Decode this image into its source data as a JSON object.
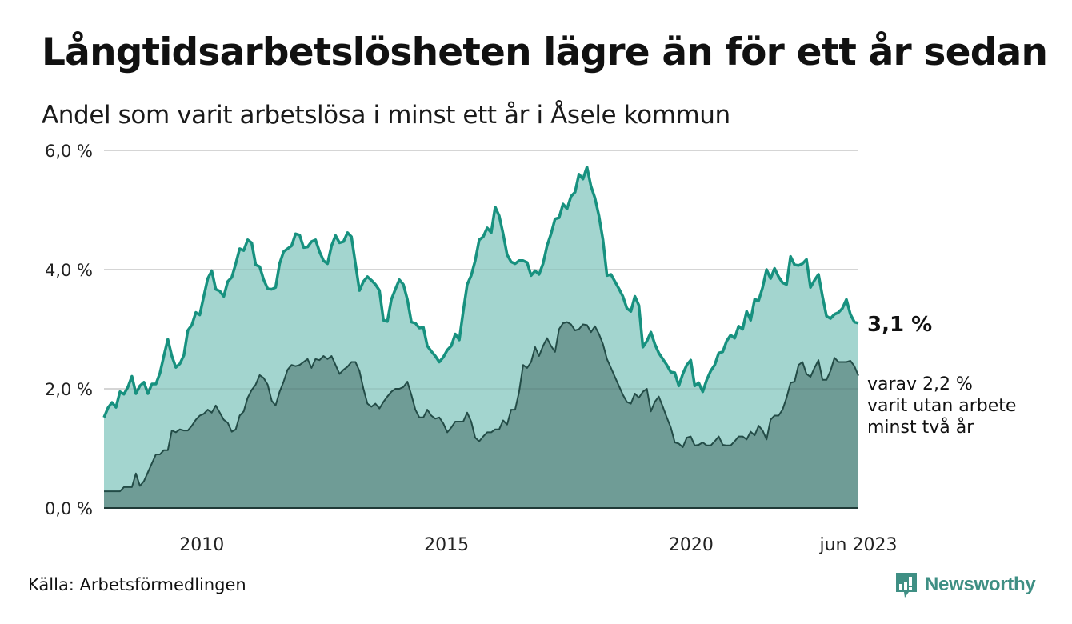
{
  "header": {
    "title": "Långtidsarbetslösheten lägre än för ett år sedan",
    "subtitle": "Andel som varit arbetslösa i minst ett år i Åsele kommun"
  },
  "footer": {
    "source": "Källa: Arbetsförmedlingen",
    "brand": "Newsworthy",
    "brand_icon": "speech-bubble-bar-chart-icon"
  },
  "colors": {
    "total_line": "#17917f",
    "total_fill": "#a3d5cf",
    "long_line": "#234c47",
    "long_fill": "#6f9c96",
    "grid": "#e3e3e3",
    "brand": "#3f8f84"
  },
  "chart_data": {
    "type": "area",
    "title": "Långtidsarbetslösheten lägre än för ett år sedan",
    "subtitle": "Andel som varit arbetslösa i minst ett år i Åsele kommun",
    "xlabel": "",
    "ylabel": "",
    "x_start": "2008-01",
    "x_end": "2023-06",
    "frequency": "monthly",
    "xlim": [
      2008.0,
      2023.42
    ],
    "ylim": [
      0,
      6
    ],
    "grid": true,
    "y_ticks": [
      {
        "value": 0,
        "label": "0,0 %"
      },
      {
        "value": 2,
        "label": "2,0 %"
      },
      {
        "value": 4,
        "label": "4,0 %"
      },
      {
        "value": 6,
        "label": "6,0 %"
      }
    ],
    "x_ticks": [
      {
        "value": 2010.0,
        "label": "2010"
      },
      {
        "value": 2015.0,
        "label": "2015"
      },
      {
        "value": 2020.0,
        "label": "2020"
      },
      {
        "value": 2023.42,
        "label": "jun 2023"
      }
    ],
    "series": [
      {
        "name": "Arbetslösa minst ett år",
        "end_label": "3,1 %",
        "values": [
          1.52,
          1.68,
          1.77,
          1.69,
          1.95,
          1.91,
          2.03,
          2.21,
          1.92,
          2.05,
          2.11,
          1.92,
          2.08,
          2.08,
          2.26,
          2.55,
          2.83,
          2.55,
          2.36,
          2.42,
          2.56,
          2.98,
          3.07,
          3.28,
          3.24,
          3.55,
          3.85,
          3.98,
          3.67,
          3.64,
          3.55,
          3.8,
          3.87,
          4.1,
          4.35,
          4.32,
          4.5,
          4.45,
          4.08,
          4.05,
          3.83,
          3.68,
          3.67,
          3.7,
          4.1,
          4.3,
          4.35,
          4.4,
          4.6,
          4.58,
          4.37,
          4.38,
          4.47,
          4.5,
          4.3,
          4.15,
          4.1,
          4.4,
          4.57,
          4.45,
          4.47,
          4.62,
          4.55,
          4.1,
          3.65,
          3.8,
          3.88,
          3.82,
          3.75,
          3.65,
          3.15,
          3.13,
          3.5,
          3.67,
          3.83,
          3.75,
          3.5,
          3.12,
          3.1,
          3.02,
          3.03,
          2.72,
          2.63,
          2.55,
          2.45,
          2.53,
          2.65,
          2.72,
          2.92,
          2.82,
          3.3,
          3.75,
          3.9,
          4.15,
          4.5,
          4.55,
          4.7,
          4.62,
          5.05,
          4.9,
          4.6,
          4.25,
          4.13,
          4.1,
          4.15,
          4.15,
          4.12,
          3.9,
          3.98,
          3.92,
          4.1,
          4.4,
          4.6,
          4.85,
          4.87,
          5.1,
          5.02,
          5.23,
          5.3,
          5.6,
          5.52,
          5.72,
          5.4,
          5.2,
          4.9,
          4.5,
          3.9,
          3.92,
          3.8,
          3.68,
          3.55,
          3.35,
          3.3,
          3.55,
          3.4,
          2.7,
          2.8,
          2.95,
          2.75,
          2.6,
          2.5,
          2.4,
          2.28,
          2.27,
          2.05,
          2.25,
          2.4,
          2.48,
          2.05,
          2.1,
          1.95,
          2.15,
          2.3,
          2.4,
          2.6,
          2.62,
          2.8,
          2.9,
          2.85,
          3.05,
          3.0,
          3.3,
          3.15,
          3.5,
          3.48,
          3.7,
          4.0,
          3.85,
          4.02,
          3.88,
          3.78,
          3.75,
          4.22,
          4.08,
          4.07,
          4.1,
          4.17,
          3.7,
          3.82,
          3.92,
          3.55,
          3.22,
          3.18,
          3.25,
          3.28,
          3.35,
          3.5,
          3.25,
          3.12,
          3.1
        ]
      },
      {
        "name": "varav utan arbete minst två år",
        "end_label": [
          "varav 2,2 %",
          "varit utan arbete",
          "minst två år"
        ],
        "values": [
          0.28,
          0.28,
          0.28,
          0.28,
          0.28,
          0.35,
          0.35,
          0.35,
          0.58,
          0.37,
          0.45,
          0.6,
          0.75,
          0.9,
          0.9,
          0.97,
          0.97,
          1.3,
          1.27,
          1.32,
          1.3,
          1.3,
          1.38,
          1.48,
          1.55,
          1.58,
          1.65,
          1.6,
          1.72,
          1.6,
          1.48,
          1.43,
          1.28,
          1.32,
          1.55,
          1.62,
          1.85,
          1.98,
          2.07,
          2.23,
          2.18,
          2.07,
          1.8,
          1.72,
          1.95,
          2.12,
          2.32,
          2.4,
          2.38,
          2.4,
          2.45,
          2.5,
          2.35,
          2.5,
          2.48,
          2.55,
          2.5,
          2.55,
          2.4,
          2.25,
          2.32,
          2.37,
          2.45,
          2.45,
          2.3,
          2.0,
          1.75,
          1.7,
          1.75,
          1.67,
          1.78,
          1.87,
          1.95,
          2.0,
          2.0,
          2.03,
          2.12,
          1.9,
          1.65,
          1.52,
          1.52,
          1.65,
          1.55,
          1.5,
          1.52,
          1.42,
          1.27,
          1.35,
          1.45,
          1.45,
          1.45,
          1.6,
          1.45,
          1.18,
          1.12,
          1.2,
          1.27,
          1.27,
          1.32,
          1.32,
          1.47,
          1.4,
          1.65,
          1.65,
          1.95,
          2.4,
          2.35,
          2.45,
          2.7,
          2.55,
          2.72,
          2.85,
          2.72,
          2.62,
          3.0,
          3.1,
          3.12,
          3.08,
          2.98,
          3.0,
          3.08,
          3.07,
          2.95,
          3.05,
          2.92,
          2.75,
          2.5,
          2.35,
          2.2,
          2.05,
          1.9,
          1.78,
          1.75,
          1.92,
          1.85,
          1.95,
          2.0,
          1.62,
          1.78,
          1.87,
          1.7,
          1.52,
          1.35,
          1.1,
          1.08,
          1.02,
          1.18,
          1.2,
          1.05,
          1.06,
          1.1,
          1.05,
          1.05,
          1.12,
          1.2,
          1.06,
          1.05,
          1.05,
          1.12,
          1.2,
          1.2,
          1.15,
          1.28,
          1.22,
          1.38,
          1.3,
          1.15,
          1.48,
          1.55,
          1.55,
          1.65,
          1.85,
          2.1,
          2.12,
          2.4,
          2.45,
          2.25,
          2.2,
          2.35,
          2.48,
          2.15,
          2.15,
          2.3,
          2.52,
          2.45,
          2.45,
          2.45,
          2.47,
          2.38,
          2.22
        ]
      }
    ]
  }
}
